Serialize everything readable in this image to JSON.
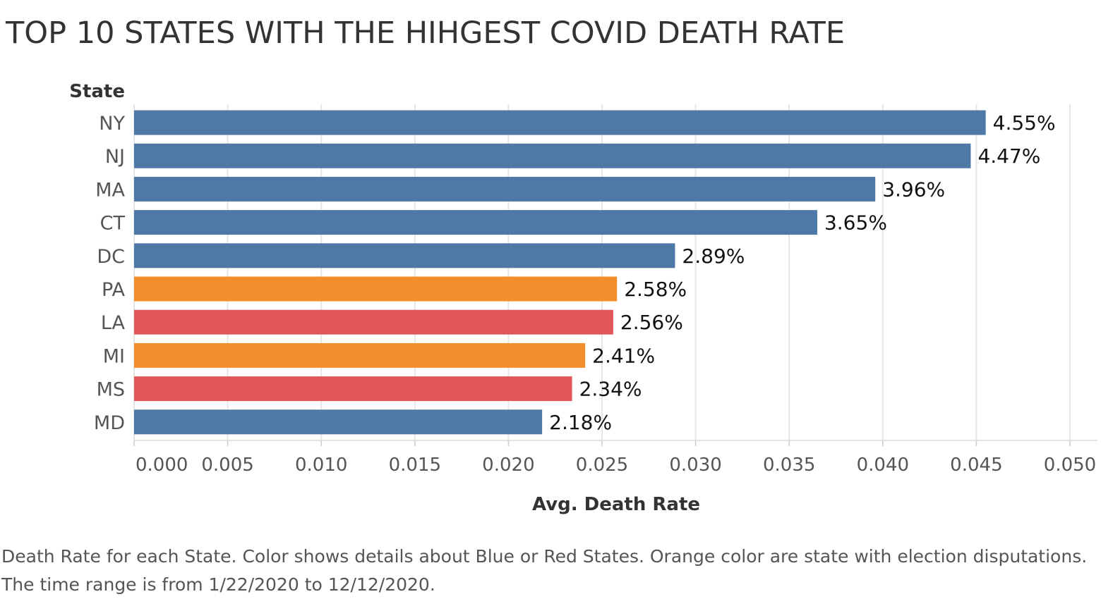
{
  "title": "TOP 10 STATES WITH THE HIHGEST COVID DEATH RATE",
  "caption": "Death Rate for each State.  Color shows details about Blue or Red States. Orange color are state with election disputations. The time range is from 1/22/2020 to 12/12/2020.",
  "chart_data": {
    "type": "bar",
    "orientation": "horizontal",
    "ylabel": "State",
    "xlabel": "Avg. Death Rate",
    "xlim": [
      0,
      0.05
    ],
    "x_ticks": [
      "0.000",
      "0.005",
      "0.010",
      "0.015",
      "0.020",
      "0.025",
      "0.030",
      "0.035",
      "0.040",
      "0.045",
      "0.050"
    ],
    "grid": "vertical",
    "categories": [
      "NY",
      "NJ",
      "MA",
      "CT",
      "DC",
      "PA",
      "LA",
      "MI",
      "MS",
      "MD"
    ],
    "values": [
      0.0455,
      0.0447,
      0.0396,
      0.0365,
      0.0289,
      0.0258,
      0.0256,
      0.0241,
      0.0234,
      0.0218
    ],
    "labels": [
      "4.55%",
      "4.47%",
      "3.96%",
      "3.65%",
      "2.89%",
      "2.58%",
      "2.56%",
      "2.41%",
      "2.34%",
      "2.18%"
    ],
    "groups": [
      "blue",
      "blue",
      "blue",
      "blue",
      "blue",
      "orange",
      "red",
      "orange",
      "red",
      "blue"
    ],
    "colors": {
      "blue": "#4e79a7",
      "orange": "#f28e2b",
      "red": "#e15759"
    }
  }
}
